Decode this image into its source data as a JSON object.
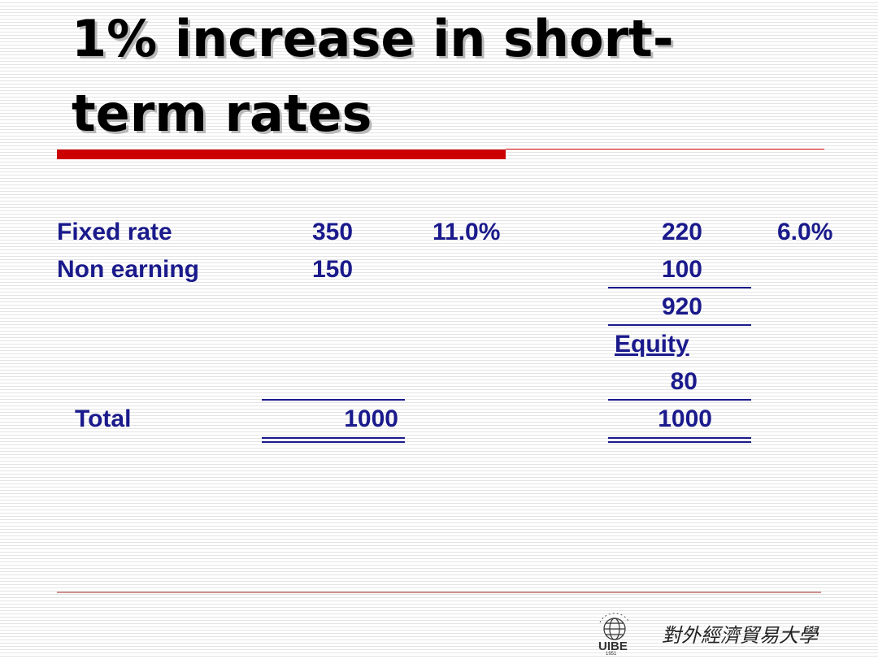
{
  "slide": {
    "title_line1": "1% increase in short-",
    "title_line2": "term rates"
  },
  "table": {
    "fixed_rate": {
      "label": "Fixed rate",
      "assets": "350",
      "asset_rate": "11.0%",
      "liabilities": "220",
      "liability_rate": "6.0%"
    },
    "non_earning": {
      "label": "Non earning",
      "assets": "150",
      "liabilities": "100"
    },
    "subtotal": "920",
    "equity_label": "Equity",
    "equity_value": "80",
    "total": {
      "label": "Total",
      "assets": "1000",
      "liabilities": "1000"
    }
  },
  "logo": {
    "abbrev": "UIBE",
    "year": "1951",
    "calligraphy": "對外經濟貿易大學"
  },
  "colors": {
    "title_text": "#000000",
    "table_text": "#1a1a8c",
    "accent_red": "#cc0000"
  }
}
